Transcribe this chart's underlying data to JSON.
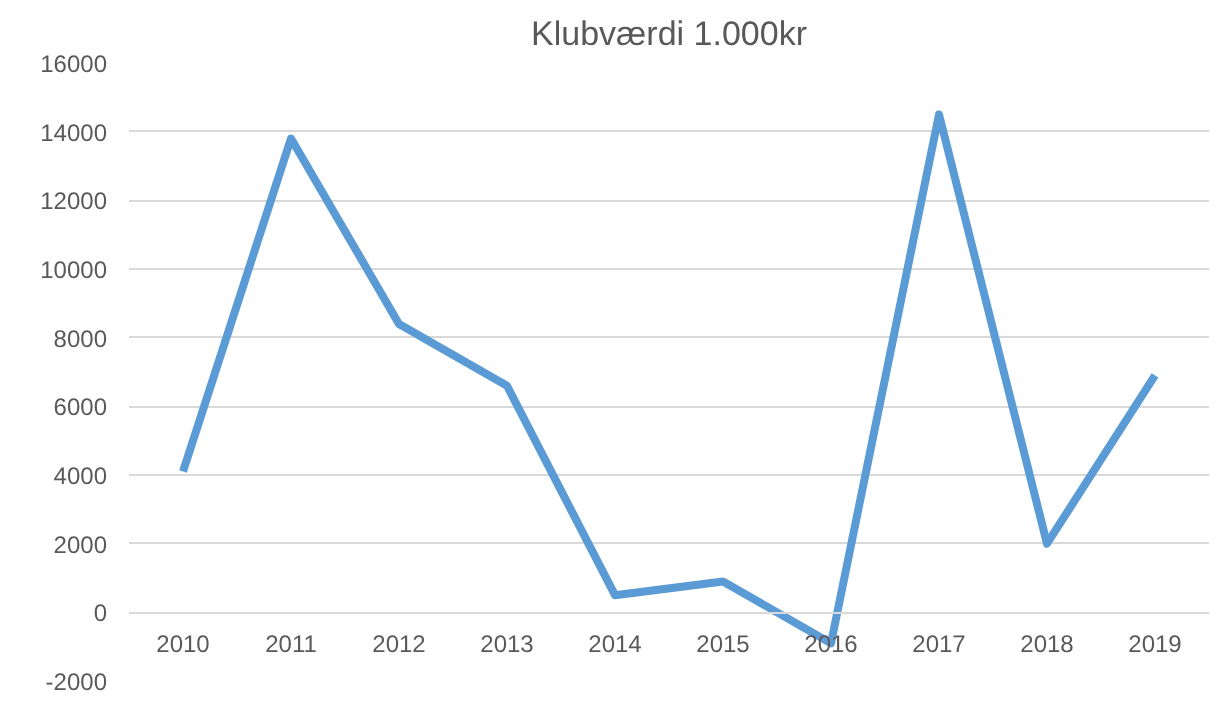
{
  "chart_data": {
    "type": "line",
    "title": "Klubværdi 1.000kr",
    "categories": [
      "2010",
      "2011",
      "2012",
      "2013",
      "2014",
      "2015",
      "2016",
      "2017",
      "2018",
      "2019"
    ],
    "series": [
      {
        "color": "#5b9bd5",
        "values": [
          4100,
          13800,
          8400,
          6600,
          500,
          900,
          -900,
          14500,
          2000,
          6900
        ]
      }
    ],
    "ylim": [
      -2000,
      16000
    ],
    "yticks": [
      -2000,
      0,
      2000,
      4000,
      6000,
      8000,
      10000,
      12000,
      14000,
      16000
    ],
    "grid": "y",
    "line_style": "solid",
    "marker": "none"
  }
}
